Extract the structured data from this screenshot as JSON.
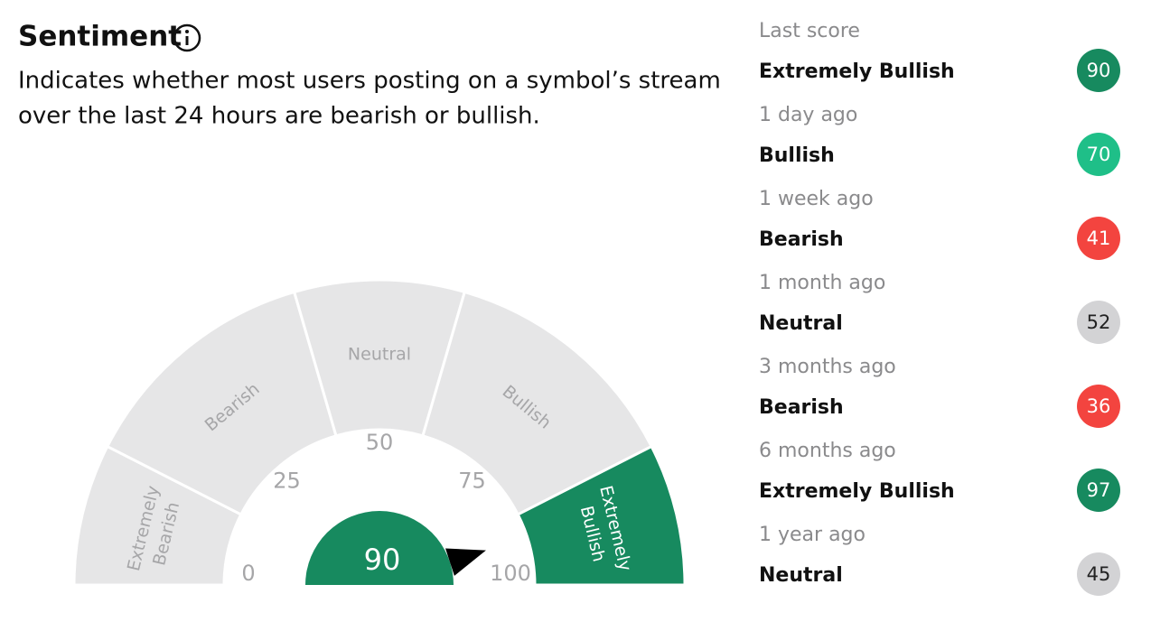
{
  "header": {
    "title": "Sentiment",
    "description": [
      "Indicates whether most users posting on a symbol’s stream",
      "over the last 24 hours are bearish or bullish."
    ]
  },
  "chart_data": {
    "type": "gauge",
    "value": 90,
    "xlim": [
      0,
      100
    ],
    "xticks": [
      0,
      25,
      50,
      75,
      100
    ],
    "color": "#178a5f",
    "band_color": "#e6e6e7",
    "bands": [
      {
        "label": [
          "Extremely",
          "Bearish"
        ],
        "from": 0,
        "to": 15
      },
      {
        "label": [
          "Bearish"
        ],
        "from": 15,
        "to": 41
      },
      {
        "label": [
          "Neutral"
        ],
        "from": 41,
        "to": 59
      },
      {
        "label": [
          "Bullish"
        ],
        "from": 59,
        "to": 85
      },
      {
        "label": [
          "Extremely",
          "Bullish"
        ],
        "from": 85,
        "to": 100
      }
    ]
  },
  "history": [
    {
      "when": "Last score",
      "label": "Extremely Bullish",
      "score": 90,
      "color": "#178a5f",
      "text_color": "#ffffff"
    },
    {
      "when": "1 day ago",
      "label": "Bullish",
      "score": 70,
      "color": "#1fbf88",
      "text_color": "#ffffff"
    },
    {
      "when": "1 week ago",
      "label": "Bearish",
      "score": 41,
      "color": "#f3443f",
      "text_color": "#ffffff"
    },
    {
      "when": "1 month ago",
      "label": "Neutral",
      "score": 52,
      "color": "#d3d3d5",
      "text_color": "#222222"
    },
    {
      "when": "3 months ago",
      "label": "Bearish",
      "score": 36,
      "color": "#f3443f",
      "text_color": "#ffffff"
    },
    {
      "when": "6 months ago",
      "label": "Extremely Bullish",
      "score": 97,
      "color": "#178a5f",
      "text_color": "#ffffff"
    },
    {
      "when": "1 year ago",
      "label": "Neutral",
      "score": 45,
      "color": "#d3d3d5",
      "text_color": "#222222"
    }
  ]
}
